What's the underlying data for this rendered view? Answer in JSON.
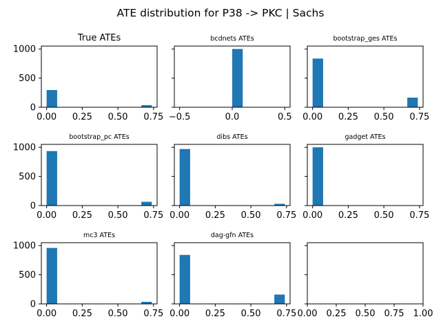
{
  "figure": {
    "suptitle": "ATE distribution for P38 -> PKC | Sachs"
  },
  "chart_data": [
    {
      "type": "bar",
      "title": "True ATEs",
      "bar_color": "#1f77b4",
      "xlim": [
        -0.037,
        0.775
      ],
      "ylim": [
        0,
        1050
      ],
      "xticks": [
        0.0,
        0.25,
        0.5,
        0.75
      ],
      "xtick_labels": [
        "0.00",
        "0.25",
        "0.50",
        "0.75"
      ],
      "yticks": [
        0,
        500,
        1000
      ],
      "ytick_labels": [
        "0",
        "500",
        "1000"
      ],
      "bins": [
        {
          "x0": 0.0,
          "x1": 0.0738,
          "count": 295
        },
        {
          "x0": 0.6642,
          "x1": 0.738,
          "count": 35
        }
      ]
    },
    {
      "type": "bar",
      "title": "bcdnets ATEs",
      "bar_color": "#1f77b4",
      "xlim": [
        -0.55,
        0.55
      ],
      "ylim": [
        0,
        1050
      ],
      "xticks": [
        -0.5,
        0.0,
        0.5
      ],
      "xtick_labels": [
        "−0.5",
        "0.0",
        "0.5"
      ],
      "yticks": [
        0,
        500,
        1000
      ],
      "ytick_labels": [
        "",
        "",
        ""
      ],
      "bins": [
        {
          "x0": 0.0,
          "x1": 0.1,
          "count": 1000
        }
      ]
    },
    {
      "type": "bar",
      "title": "bootstrap_ges ATEs",
      "bar_color": "#1f77b4",
      "xlim": [
        -0.037,
        0.775
      ],
      "ylim": [
        0,
        1050
      ],
      "xticks": [
        0.0,
        0.25,
        0.5,
        0.75
      ],
      "xtick_labels": [
        "0.00",
        "0.25",
        "0.50",
        "0.75"
      ],
      "yticks": [
        0,
        500,
        1000
      ],
      "ytick_labels": [
        "",
        "",
        ""
      ],
      "bins": [
        {
          "x0": 0.0,
          "x1": 0.0738,
          "count": 835
        },
        {
          "x0": 0.6642,
          "x1": 0.738,
          "count": 165
        }
      ]
    },
    {
      "type": "bar",
      "title": "bootstrap_pc ATEs",
      "bar_color": "#1f77b4",
      "xlim": [
        -0.037,
        0.775
      ],
      "ylim": [
        0,
        1050
      ],
      "xticks": [
        0.0,
        0.25,
        0.5,
        0.75
      ],
      "xtick_labels": [
        "0.00",
        "0.25",
        "0.50",
        "0.75"
      ],
      "yticks": [
        0,
        500,
        1000
      ],
      "ytick_labels": [
        "0",
        "500",
        "1000"
      ],
      "bins": [
        {
          "x0": 0.0,
          "x1": 0.0738,
          "count": 935
        },
        {
          "x0": 0.6642,
          "x1": 0.738,
          "count": 65
        }
      ]
    },
    {
      "type": "bar",
      "title": "dibs ATEs",
      "bar_color": "#1f77b4",
      "xlim": [
        -0.037,
        0.775
      ],
      "ylim": [
        0,
        1050
      ],
      "xticks": [
        0.0,
        0.25,
        0.5,
        0.75
      ],
      "xtick_labels": [
        "0.00",
        "0.25",
        "0.50",
        "0.75"
      ],
      "yticks": [
        0,
        500,
        1000
      ],
      "ytick_labels": [
        "",
        "",
        ""
      ],
      "bins": [
        {
          "x0": 0.0,
          "x1": 0.0738,
          "count": 970
        },
        {
          "x0": 0.6642,
          "x1": 0.738,
          "count": 30
        }
      ]
    },
    {
      "type": "bar",
      "title": "gadget ATEs",
      "bar_color": "#1f77b4",
      "xlim": [
        -0.037,
        0.775
      ],
      "ylim": [
        0,
        1050
      ],
      "xticks": [
        0.0,
        0.25,
        0.5,
        0.75
      ],
      "xtick_labels": [
        "0.00",
        "0.25",
        "0.50",
        "0.75"
      ],
      "yticks": [
        0,
        500,
        1000
      ],
      "ytick_labels": [
        "",
        "",
        ""
      ],
      "bins": [
        {
          "x0": 0.0,
          "x1": 0.0738,
          "count": 1000
        }
      ]
    },
    {
      "type": "bar",
      "title": "mc3 ATEs",
      "bar_color": "#1f77b4",
      "xlim": [
        -0.037,
        0.775
      ],
      "ylim": [
        0,
        1050
      ],
      "xticks": [
        0.0,
        0.25,
        0.5,
        0.75
      ],
      "xtick_labels": [
        "0.00",
        "0.25",
        "0.50",
        "0.75"
      ],
      "yticks": [
        0,
        500,
        1000
      ],
      "ytick_labels": [
        "0",
        "500",
        "1000"
      ],
      "bins": [
        {
          "x0": 0.0,
          "x1": 0.0738,
          "count": 960
        },
        {
          "x0": 0.6642,
          "x1": 0.738,
          "count": 35
        }
      ]
    },
    {
      "type": "bar",
      "title": "dag-gfn ATEs",
      "bar_color": "#1f77b4",
      "xlim": [
        -0.037,
        0.775
      ],
      "ylim": [
        0,
        1050
      ],
      "xticks": [
        0.0,
        0.25,
        0.5,
        0.75
      ],
      "xtick_labels": [
        "0.00",
        "0.25",
        "0.50",
        "0.75"
      ],
      "yticks": [
        0,
        500,
        1000
      ],
      "ytick_labels": [
        "",
        "",
        ""
      ],
      "bins": [
        {
          "x0": 0.0,
          "x1": 0.0738,
          "count": 840
        },
        {
          "x0": 0.6642,
          "x1": 0.738,
          "count": 160
        }
      ]
    },
    {
      "type": "bar",
      "title": "",
      "bar_color": "#1f77b4",
      "xlim": [
        0.0,
        1.0
      ],
      "ylim": [
        0,
        1050
      ],
      "xticks": [
        0.0,
        0.25,
        0.5,
        0.75,
        1.0
      ],
      "xtick_labels": [
        "0.00",
        "0.25",
        "0.50",
        "0.75",
        "1.00"
      ],
      "yticks": [
        0,
        500,
        1000
      ],
      "ytick_labels": [
        "",
        "",
        ""
      ],
      "bins": []
    }
  ]
}
